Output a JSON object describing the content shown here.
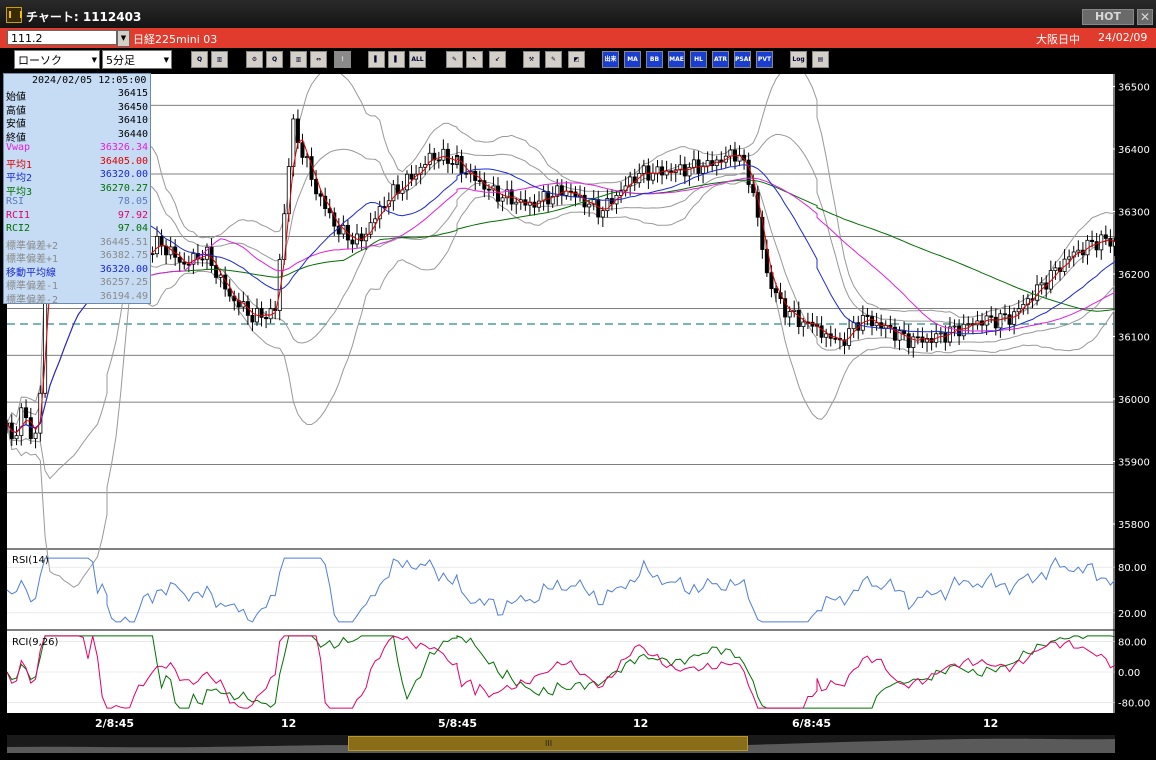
{
  "window": {
    "title": "チャート: 1112403",
    "hot_label": "HOT",
    "close_label": "✕"
  },
  "header": {
    "code": "111.2",
    "name": "日経225mini 03",
    "market": "大阪日中",
    "date": "24/02/09"
  },
  "toolbar": {
    "chart_type": "ローソク",
    "interval": "5分足",
    "buttons": [
      {
        "name": "zoom",
        "label": "Q"
      },
      {
        "name": "layout",
        "label": "▥"
      },
      {
        "name": "settings",
        "label": "⚙"
      },
      {
        "name": "search",
        "label": "Q"
      },
      {
        "name": "candle",
        "label": "▥"
      },
      {
        "name": "compare",
        "label": "⇔"
      },
      {
        "name": "alert",
        "label": "!"
      },
      {
        "name": "bar-a",
        "label": "▌"
      },
      {
        "name": "bar-b",
        "label": "▌"
      },
      {
        "name": "all",
        "label": "ALL"
      },
      {
        "name": "pen",
        "label": "✎"
      },
      {
        "name": "cursor",
        "label": "↖"
      },
      {
        "name": "arrow",
        "label": "↙"
      },
      {
        "name": "tools",
        "label": "⚒"
      },
      {
        "name": "draw",
        "label": "✎"
      },
      {
        "name": "color",
        "label": "◩"
      },
      {
        "name": "hist",
        "label": "出来"
      },
      {
        "name": "ma",
        "label": "MA"
      },
      {
        "name": "bb",
        "label": "BB"
      },
      {
        "name": "mae",
        "label": "MAE"
      },
      {
        "name": "hl",
        "label": "HL"
      },
      {
        "name": "atr",
        "label": "ATR"
      },
      {
        "name": "psar",
        "label": "PSAR"
      },
      {
        "name": "pvt",
        "label": "PVT"
      },
      {
        "name": "log",
        "label": "Log"
      },
      {
        "name": "export",
        "label": "▤"
      }
    ]
  },
  "info": {
    "datetime": "2024/02/05  12:05:00",
    "rows": [
      {
        "label": "始値",
        "value": "36415",
        "color": "#000000"
      },
      {
        "label": "高値",
        "value": "36450",
        "color": "#000000"
      },
      {
        "label": "安値",
        "value": "36410",
        "color": "#000000"
      },
      {
        "label": "終値",
        "value": "36440",
        "color": "#000000"
      },
      {
        "label": "Vwap",
        "value": "36326.34",
        "color": "#e020e0"
      },
      {
        "label": "平均1",
        "value": "36405.00",
        "color": "#e00000"
      },
      {
        "label": "平均2",
        "value": "36320.00",
        "color": "#1a2ad0"
      },
      {
        "label": "平均3",
        "value": "36270.27",
        "color": "#007000"
      },
      {
        "label": "RSI",
        "value": "78.05",
        "color": "#5a7ab8"
      },
      {
        "label": "RCI1",
        "value": "97.92",
        "color": "#e0006a"
      },
      {
        "label": "RCI2",
        "value": "97.04",
        "color": "#007000"
      },
      {
        "label": "標準偏差+2",
        "value": "36445.51",
        "color": "#8a8a8a"
      },
      {
        "label": "標準偏差+1",
        "value": "36382.75",
        "color": "#8a8a8a"
      },
      {
        "label": "移動平均線",
        "value": "36320.00",
        "color": "#1a2ad0"
      },
      {
        "label": "標準偏差-1",
        "value": "36257.25",
        "color": "#8a8a8a"
      },
      {
        "label": "標準偏差-2",
        "value": "36194.49",
        "color": "#8a8a8a"
      }
    ]
  },
  "chart_data": {
    "type": "candlestick",
    "price_axis": {
      "ticks": [
        "36500",
        "36400",
        "36300",
        "36200",
        "36100",
        "36000",
        "35900",
        "35800"
      ],
      "ylim": [
        35760,
        36520
      ]
    },
    "x_labels": [
      "2/8:45",
      "12",
      "5/8:45",
      "12",
      "6/8:45",
      "12"
    ],
    "sessions": [
      {
        "x_start": "2/8:45",
        "anchors": [
          [
            0,
            35955
          ],
          [
            0.05,
            35930
          ],
          [
            0.14,
            35980
          ],
          [
            0.2,
            35960
          ],
          [
            0.26,
            35940
          ],
          [
            0.32,
            35945
          ],
          [
            0.4,
            36320
          ],
          [
            0.5,
            36230
          ],
          [
            0.6,
            36360
          ],
          [
            0.68,
            36395
          ],
          [
            0.76,
            36315
          ],
          [
            0.86,
            36330
          ],
          [
            0.94,
            36275
          ],
          [
            1,
            36260
          ]
        ]
      },
      {
        "x_start": "2/8:45",
        "anchors": [
          [
            0,
            36255
          ],
          [
            0.08,
            36220
          ],
          [
            0.15,
            36250
          ],
          [
            0.22,
            36215
          ],
          [
            0.28,
            36235
          ],
          [
            0.35,
            36165
          ],
          [
            0.42,
            36130
          ],
          [
            0.48,
            36140
          ],
          [
            0.53,
            36440
          ],
          [
            0.6,
            36330
          ],
          [
            0.66,
            36270
          ],
          [
            0.72,
            36250
          ],
          [
            0.8,
            36320
          ],
          [
            0.88,
            36360
          ],
          [
            0.93,
            36390
          ],
          [
            1,
            36380
          ]
        ]
      },
      {
        "x_start": "5/8:45",
        "anchors": [
          [
            0,
            36375
          ],
          [
            0.1,
            36330
          ],
          [
            0.2,
            36310
          ],
          [
            0.3,
            36335
          ],
          [
            0.4,
            36300
          ],
          [
            0.5,
            36360
          ],
          [
            0.6,
            36365
          ],
          [
            0.7,
            36375
          ],
          [
            0.78,
            36395
          ],
          [
            0.82,
            36340
          ],
          [
            0.86,
            36200
          ],
          [
            0.9,
            36150
          ],
          [
            0.95,
            36125
          ],
          [
            1,
            36115
          ]
        ]
      },
      {
        "x_start": "6/8:45",
        "anchors": [
          [
            0,
            36110
          ],
          [
            0.08,
            36090
          ],
          [
            0.15,
            36130
          ],
          [
            0.25,
            36110
          ],
          [
            0.3,
            36095
          ],
          [
            0.38,
            36095
          ],
          [
            0.46,
            36110
          ],
          [
            0.55,
            36125
          ],
          [
            0.65,
            36130
          ],
          [
            0.75,
            36180
          ],
          [
            0.85,
            36230
          ],
          [
            0.95,
            36255
          ],
          [
            1,
            36250
          ]
        ]
      }
    ],
    "reference_line": 36120,
    "grid_levels": [
      36470,
      36360,
      36260,
      36145,
      36070,
      35995,
      35895,
      35850
    ],
    "indicators": {
      "vwap": {
        "color": "#e020e0"
      },
      "ma1": {
        "color": "#e00000"
      },
      "ma2": {
        "color": "#1a2ad0"
      },
      "ma3": {
        "color": "#007000"
      },
      "bollinger": {
        "color": "#999999"
      }
    },
    "rsi": {
      "label": "RSI(14)",
      "ticks": [
        "80.00",
        "20.00"
      ],
      "color": "#4f7fd8"
    },
    "rci": {
      "label": "RCI(9,26)",
      "ticks": [
        "80.00",
        "0.00",
        "-80.00"
      ],
      "colors": [
        "#e0006a",
        "#007000"
      ]
    }
  }
}
